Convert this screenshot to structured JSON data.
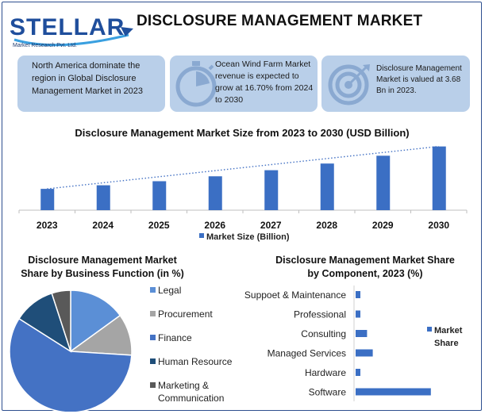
{
  "header": {
    "logo_text": "STELLAR",
    "logo_sub": "Market Research Pvt. Ltd.",
    "title": "DISCLOSURE MANAGEMENT MARKET"
  },
  "info_boxes": [
    {
      "text_lines": [
        "North America dominate the",
        "region in Global Disclosure",
        "Management Market in 2023"
      ],
      "icon": "none"
    },
    {
      "text_lines": [
        "Ocean Wind Farm Market",
        "revenue is expected to",
        "grow at 16.70% from 2024",
        "to 2030"
      ],
      "icon": "stopwatch-icon"
    },
    {
      "text_lines": [
        "Disclosure Management",
        "Market is valued at 3.68",
        "Bn in 2023."
      ],
      "icon": "target-icon"
    }
  ],
  "colors": {
    "bar": "#3b6fc4",
    "box": "#b9cfe9",
    "legal": "#5b8fd6",
    "procurement": "#a5a5a5",
    "finance": "#4472c4",
    "human_resource": "#1f4e79",
    "marketing": "#595959"
  },
  "chart_data": [
    {
      "type": "bar",
      "title": "Disclosure Management Market Size from 2023 to 2030 (USD Billion)",
      "categories": [
        "2023",
        "2024",
        "2025",
        "2026",
        "2027",
        "2028",
        "2029",
        "2030"
      ],
      "series": [
        {
          "name": "Market Size (Billion)",
          "values": [
            3.68,
            4.3,
            5.0,
            5.85,
            6.9,
            8.05,
            9.4,
            11.0
          ]
        }
      ],
      "trendline": "dotted-linear",
      "ylim": [
        0,
        11.5
      ],
      "legend": "bottom"
    },
    {
      "type": "pie",
      "title_lines": [
        "Disclosure Management Market",
        "Share by Business Function (in %)"
      ],
      "labels": [
        "Legal",
        "Procurement",
        "Finance",
        "Human Resource",
        "Marketing & Communication"
      ],
      "label_lines": [
        [
          "Legal"
        ],
        [
          "Procurement"
        ],
        [
          "Finance"
        ],
        [
          "Human Resource"
        ],
        [
          "Marketing &",
          "Communication"
        ]
      ],
      "values": [
        15,
        11,
        58,
        11,
        5
      ],
      "legend": "right"
    },
    {
      "type": "bar",
      "orientation": "horizontal",
      "title_lines": [
        "Disclosure Management Market Share",
        "by Component, 2023 (%)"
      ],
      "categories": [
        "Suppoet & Maintenance",
        "Professional",
        "Consulting",
        "Managed Services",
        "Hardware",
        "Software"
      ],
      "series": [
        {
          "name_lines": [
            "Market",
            "Share"
          ],
          "values": [
            5,
            5,
            12,
            18,
            5,
            79
          ]
        }
      ],
      "xlim": [
        0,
        100
      ],
      "legend": "right"
    }
  ]
}
